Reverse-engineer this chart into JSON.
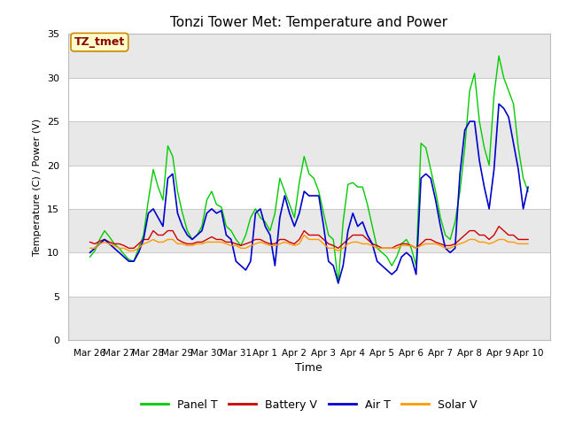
{
  "title": "Tonzi Tower Met: Temperature and Power",
  "xlabel": "Time",
  "ylabel": "Temperature (C) / Power (V)",
  "ylim": [
    0,
    35
  ],
  "yticks": [
    0,
    5,
    10,
    15,
    20,
    25,
    30,
    35
  ],
  "xtick_labels": [
    "Mar 26",
    "Mar 27",
    "Mar 28",
    "Mar 29",
    "Mar 30",
    "Mar 31",
    "Apr 1",
    "Apr 2",
    "Apr 3",
    "Apr 4",
    "Apr 5",
    "Apr 6",
    "Apr 7",
    "Apr 8",
    "Apr 9",
    "Apr 10"
  ],
  "annotation_text": "TZ_tmet",
  "plot_bg": "#ffffff",
  "band_color": "#e8e8e8",
  "legend_entries": [
    "Panel T",
    "Battery V",
    "Air T",
    "Solar V"
  ],
  "legend_colors": [
    "#00cc00",
    "#cc0000",
    "#0000cc",
    "#ff9900"
  ],
  "panel_t": [
    9.5,
    10.2,
    11.5,
    12.5,
    11.8,
    11.0,
    10.5,
    9.8,
    9.2,
    9.0,
    10.5,
    12.0,
    16.0,
    19.5,
    17.5,
    16.0,
    22.2,
    21.0,
    17.0,
    14.5,
    12.5,
    11.5,
    12.0,
    13.0,
    16.0,
    17.0,
    15.5,
    15.2,
    13.0,
    12.5,
    11.5,
    10.8,
    12.0,
    14.0,
    15.0,
    14.0,
    13.5,
    12.5,
    14.5,
    18.5,
    17.0,
    15.5,
    14.0,
    18.0,
    21.0,
    19.0,
    18.5,
    17.0,
    14.5,
    12.0,
    11.5,
    6.5,
    13.5,
    17.8,
    18.0,
    17.5,
    17.5,
    15.5,
    13.0,
    10.5,
    10.0,
    9.5,
    8.5,
    9.5,
    11.0,
    11.5,
    10.5,
    8.5,
    22.5,
    22.0,
    19.5,
    17.0,
    14.0,
    12.0,
    11.5,
    13.5,
    17.0,
    22.0,
    28.5,
    30.5,
    25.0,
    22.0,
    20.0,
    28.0,
    32.5,
    30.0,
    28.5,
    27.0,
    22.0,
    18.5,
    17.0
  ],
  "battery_v": [
    11.2,
    11.0,
    11.3,
    11.5,
    11.2,
    11.0,
    11.0,
    10.8,
    10.5,
    10.5,
    11.0,
    11.5,
    11.5,
    12.5,
    12.0,
    12.0,
    12.5,
    12.5,
    11.5,
    11.2,
    11.0,
    11.0,
    11.2,
    11.2,
    11.5,
    11.8,
    11.5,
    11.5,
    11.2,
    11.2,
    11.0,
    10.8,
    11.0,
    11.2,
    11.5,
    11.5,
    11.2,
    11.0,
    11.0,
    11.5,
    11.5,
    11.2,
    11.0,
    11.5,
    12.5,
    12.0,
    12.0,
    12.0,
    11.5,
    11.0,
    10.8,
    10.5,
    11.0,
    11.5,
    12.0,
    12.0,
    12.0,
    11.5,
    11.0,
    10.8,
    10.5,
    10.5,
    10.5,
    10.8,
    11.0,
    11.0,
    10.8,
    10.5,
    11.0,
    11.5,
    11.5,
    11.2,
    11.0,
    10.8,
    10.8,
    11.0,
    11.5,
    12.0,
    12.5,
    12.5,
    12.0,
    12.0,
    11.5,
    12.0,
    13.0,
    12.5,
    12.0,
    12.0,
    11.5,
    11.5,
    11.5
  ],
  "air_t": [
    10.0,
    10.5,
    11.0,
    11.5,
    11.0,
    10.5,
    10.0,
    9.5,
    9.0,
    9.0,
    10.0,
    11.5,
    14.5,
    15.0,
    14.0,
    13.0,
    18.5,
    19.0,
    14.5,
    13.0,
    12.0,
    11.5,
    12.0,
    12.5,
    14.5,
    15.0,
    14.5,
    14.8,
    12.0,
    11.5,
    9.0,
    8.5,
    8.0,
    9.0,
    14.5,
    15.0,
    13.0,
    12.0,
    8.5,
    14.0,
    16.5,
    14.5,
    13.0,
    14.5,
    17.0,
    16.5,
    16.5,
    16.5,
    13.0,
    9.0,
    8.5,
    6.5,
    8.5,
    12.5,
    14.5,
    13.0,
    13.5,
    12.0,
    11.0,
    9.0,
    8.5,
    8.0,
    7.5,
    8.0,
    9.5,
    10.0,
    9.5,
    7.5,
    18.5,
    19.0,
    18.5,
    16.0,
    13.0,
    10.5,
    10.0,
    10.5,
    19.0,
    24.0,
    25.0,
    25.0,
    20.5,
    17.5,
    15.0,
    19.5,
    27.0,
    26.5,
    25.5,
    22.5,
    19.5,
    15.0,
    17.5
  ],
  "solar_v": [
    10.5,
    10.5,
    11.0,
    11.2,
    11.0,
    10.8,
    10.5,
    10.5,
    10.2,
    10.2,
    10.5,
    11.0,
    11.2,
    11.5,
    11.2,
    11.2,
    11.5,
    11.5,
    11.0,
    11.0,
    10.8,
    10.8,
    11.0,
    11.0,
    11.2,
    11.2,
    11.2,
    11.2,
    11.0,
    10.8,
    10.8,
    10.5,
    10.5,
    10.8,
    11.0,
    11.2,
    11.0,
    10.8,
    10.8,
    11.0,
    11.2,
    11.0,
    10.8,
    11.0,
    12.0,
    11.5,
    11.5,
    11.5,
    11.0,
    10.5,
    10.5,
    10.2,
    10.5,
    11.0,
    11.2,
    11.2,
    11.0,
    11.0,
    10.8,
    10.5,
    10.5,
    10.5,
    10.5,
    10.5,
    10.8,
    10.8,
    10.8,
    10.5,
    10.8,
    11.0,
    11.0,
    11.0,
    10.8,
    10.5,
    10.5,
    10.8,
    11.0,
    11.2,
    11.5,
    11.5,
    11.2,
    11.2,
    11.0,
    11.2,
    11.5,
    11.5,
    11.2,
    11.2,
    11.0,
    11.0,
    11.0
  ]
}
